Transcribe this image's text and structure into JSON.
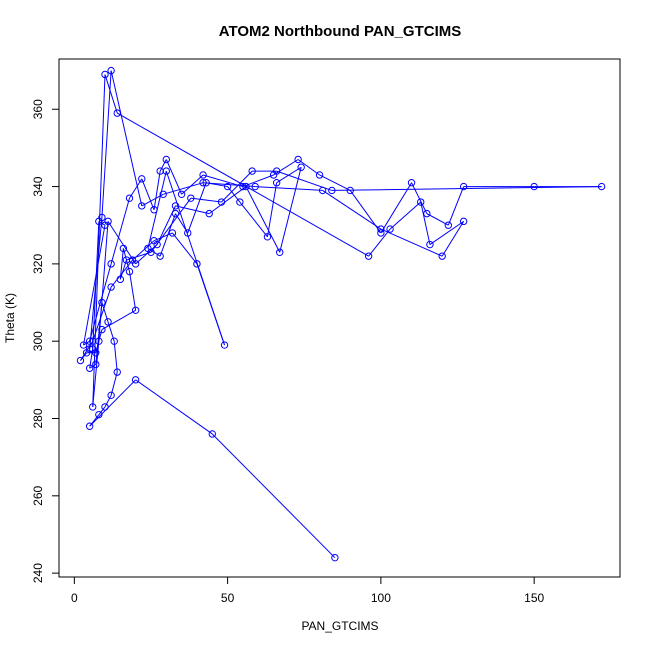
{
  "chart_data": {
    "type": "line",
    "title": "ATOM2 Northbound PAN_GTCIMS",
    "xlabel": "PAN_GTCIMS",
    "ylabel": "Theta (K)",
    "xlim": [
      -5,
      178
    ],
    "ylim": [
      239,
      373
    ],
    "xticks": [
      0,
      50,
      100,
      150
    ],
    "yticks": [
      240,
      260,
      280,
      300,
      320,
      340,
      360
    ],
    "grid": false,
    "line_color": "#0000ff",
    "marker": "open-circle",
    "series": [
      {
        "x": [
          85,
          45,
          20,
          5,
          8,
          10,
          12,
          14,
          13,
          11,
          9,
          7,
          5,
          6,
          8,
          10,
          3,
          5,
          12,
          18,
          22,
          26,
          28,
          30,
          35,
          42,
          55,
          65,
          73,
          80,
          90,
          100,
          110,
          115,
          122,
          127,
          150,
          172,
          84,
          66,
          58,
          48,
          38,
          25,
          17,
          15,
          16,
          18,
          20,
          9,
          7,
          4,
          2,
          6,
          12,
          19,
          26,
          32,
          40,
          49,
          30,
          24,
          28,
          33,
          37,
          43,
          50,
          54,
          63,
          66,
          74,
          67,
          56,
          44,
          33,
          27,
          20,
          11,
          8,
          6,
          10,
          14,
          96,
          103,
          113,
          116,
          127,
          120,
          100,
          81,
          59,
          42,
          29,
          22,
          12,
          9,
          5
        ],
        "y": [
          244,
          276,
          290,
          278,
          281,
          283,
          286,
          292,
          300,
          305,
          310,
          294,
          293,
          298,
          331,
          330,
          299,
          300,
          320,
          337,
          342,
          334,
          344,
          347,
          338,
          343,
          340,
          343,
          347,
          343,
          339,
          328,
          341,
          333,
          330,
          340,
          340,
          340,
          339,
          344,
          344,
          336,
          337,
          323,
          321,
          316,
          324,
          318,
          308,
          303,
          297,
          297,
          295,
          300,
          314,
          321,
          326,
          328,
          320,
          299,
          344,
          324,
          322,
          333,
          328,
          341,
          340,
          336,
          327,
          341,
          345,
          323,
          340,
          333,
          335,
          325,
          320,
          331,
          300,
          283,
          369,
          359,
          322,
          329,
          336,
          325,
          331,
          322,
          329,
          339,
          340,
          341,
          338,
          335,
          370,
          332,
          298
        ]
      }
    ]
  }
}
